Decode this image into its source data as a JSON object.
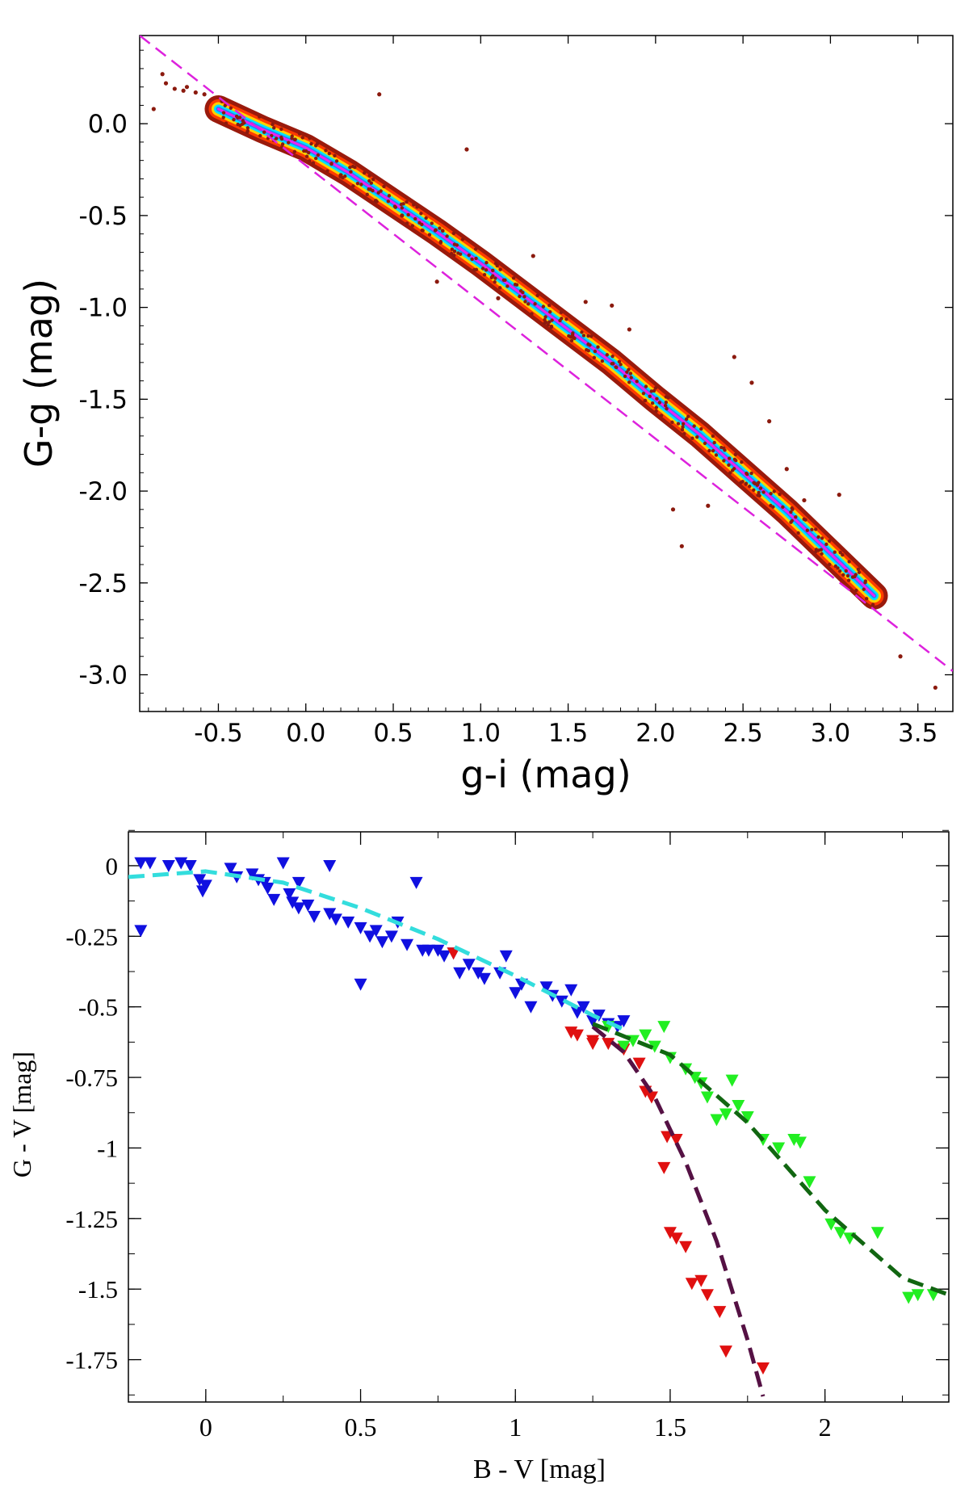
{
  "chart_data": [
    {
      "type": "scatter",
      "title": "",
      "xlabel": "g-i (mag)",
      "ylabel": "G-g (mag)",
      "xlim": [
        -0.95,
        3.7
      ],
      "ylim": [
        -3.2,
        0.48
      ],
      "xticks": [
        -0.5,
        0.0,
        0.5,
        1.0,
        1.5,
        2.0,
        2.5,
        3.0,
        3.5
      ],
      "xtick_labels": [
        "-0.5",
        "0.0",
        "0.5",
        "1.0",
        "1.5",
        "2.0",
        "2.5",
        "3.0",
        "3.5"
      ],
      "yticks": [
        0.0,
        -0.5,
        -1.0,
        -1.5,
        -2.0,
        -2.5,
        -3.0
      ],
      "ytick_labels": [
        "0.0",
        "-0.5",
        "-1.0",
        "-1.5",
        "-2.0",
        "-2.5",
        "-3.0"
      ],
      "colors": {
        "density_low": "#8b1a0e",
        "fit_line": "#dd22dd"
      },
      "density_ridge": {
        "x": [
          -0.5,
          -0.25,
          0.0,
          0.25,
          0.5,
          0.75,
          1.0,
          1.25,
          1.5,
          1.75,
          2.0,
          2.25,
          2.5,
          2.75,
          3.0,
          3.25
        ],
        "y": [
          0.08,
          -0.03,
          -0.13,
          -0.27,
          -0.43,
          -0.59,
          -0.76,
          -0.94,
          -1.12,
          -1.3,
          -1.5,
          -1.69,
          -1.9,
          -2.11,
          -2.34,
          -2.57
        ]
      },
      "outliers": {
        "x": [
          -0.87,
          -0.82,
          -0.8,
          -0.75,
          -0.7,
          -0.68,
          -0.63,
          -0.58,
          0.42,
          0.92,
          0.4,
          0.55,
          1.3,
          1.6,
          1.75,
          1.85,
          2.1,
          2.15,
          2.3,
          2.45,
          2.55,
          2.75,
          2.85,
          3.05,
          3.4,
          3.6,
          0.2,
          0.75,
          1.1,
          2.65
        ],
        "y": [
          0.08,
          0.27,
          0.22,
          0.19,
          0.18,
          0.2,
          0.17,
          0.16,
          0.16,
          -0.14,
          -0.42,
          -0.5,
          -0.72,
          -0.97,
          -0.99,
          -1.12,
          -2.1,
          -2.3,
          -2.08,
          -1.27,
          -1.41,
          -1.88,
          -2.05,
          -2.02,
          -2.9,
          -3.07,
          -0.28,
          -0.86,
          -0.95,
          -1.62
        ]
      },
      "fit_line": {
        "name": "fit",
        "x": [
          -0.95,
          3.7
        ],
        "y": [
          0.48,
          -2.98
        ]
      }
    },
    {
      "type": "scatter",
      "title": "",
      "xlabel": "B - V [mag]",
      "ylabel": "G - V [mag]",
      "xlim": [
        -0.25,
        2.4
      ],
      "ylim": [
        -1.9,
        0.12
      ],
      "xticks": [
        0,
        0.5,
        1,
        1.5,
        2
      ],
      "xtick_labels": [
        "0",
        "0.5",
        "1",
        "1.5",
        "2"
      ],
      "yticks": [
        0,
        -0.25,
        -0.5,
        -0.75,
        -1,
        -1.25,
        -1.5,
        -1.75
      ],
      "ytick_labels": [
        "0",
        "-0.25",
        "-0.5",
        "-0.75",
        "-1",
        "-1.25",
        "-1.5",
        "-1.75"
      ],
      "series": [
        {
          "name": "blue",
          "color": "#1010e0",
          "x": [
            -0.21,
            -0.18,
            -0.12,
            -0.08,
            -0.05,
            -0.02,
            -0.01,
            0.08,
            0.15,
            0.17,
            0.19,
            0.2,
            0.22,
            0.25,
            0.27,
            0.28,
            0.3,
            0.33,
            0.35,
            0.4,
            0.42,
            0.46,
            0.5,
            0.53,
            0.55,
            0.57,
            0.6,
            0.65,
            0.7,
            0.75,
            0.77,
            0.8,
            0.82,
            0.85,
            0.9,
            0.95,
            1.0,
            1.02,
            1.05,
            1.1,
            1.12,
            1.15,
            1.2,
            1.22,
            1.25,
            1.27,
            1.3,
            1.33,
            1.35,
            0.5,
            0.3,
            0.4,
            0.62,
            0.72,
            0.97,
            0.1,
            -0.21,
            0.0,
            0.68,
            0.88,
            1.18
          ],
          "y": [
            0.01,
            0.01,
            0.0,
            0.01,
            0.0,
            -0.05,
            -0.09,
            -0.01,
            -0.03,
            -0.05,
            -0.06,
            -0.08,
            -0.12,
            0.01,
            -0.1,
            -0.13,
            -0.15,
            -0.14,
            -0.18,
            -0.17,
            -0.19,
            -0.2,
            -0.22,
            -0.25,
            -0.23,
            -0.27,
            -0.25,
            -0.28,
            -0.3,
            -0.3,
            -0.32,
            -0.31,
            -0.38,
            -0.35,
            -0.4,
            -0.38,
            -0.45,
            -0.42,
            -0.5,
            -0.43,
            -0.46,
            -0.48,
            -0.52,
            -0.5,
            -0.55,
            -0.53,
            -0.56,
            -0.57,
            -0.55,
            -0.42,
            -0.06,
            0.0,
            -0.2,
            -0.3,
            -0.32,
            -0.04,
            -0.23,
            -0.07,
            -0.06,
            -0.38,
            -0.44
          ]
        },
        {
          "name": "red",
          "color": "#e01010",
          "x": [
            0.8,
            1.18,
            1.2,
            1.25,
            1.3,
            1.35,
            1.42,
            1.44,
            1.49,
            1.52,
            1.48,
            1.5,
            1.52,
            1.55,
            1.57,
            1.6,
            1.62,
            1.66,
            1.68,
            1.8,
            1.25,
            1.4
          ],
          "y": [
            -0.31,
            -0.59,
            -0.6,
            -0.62,
            -0.63,
            -0.65,
            -0.8,
            -0.82,
            -0.96,
            -0.97,
            -1.07,
            -1.3,
            -1.32,
            -1.35,
            -1.48,
            -1.47,
            -1.52,
            -1.58,
            -1.72,
            -1.78,
            -0.63,
            -0.7
          ]
        },
        {
          "name": "green",
          "color": "#22ee22",
          "x": [
            1.3,
            1.35,
            1.38,
            1.42,
            1.45,
            1.5,
            1.55,
            1.58,
            1.62,
            1.65,
            1.68,
            1.72,
            1.75,
            1.8,
            1.85,
            1.9,
            1.92,
            1.95,
            2.02,
            2.05,
            2.08,
            2.17,
            2.27,
            2.3,
            2.35,
            1.48,
            1.6,
            1.7
          ],
          "y": [
            -0.57,
            -0.64,
            -0.62,
            -0.6,
            -0.64,
            -0.68,
            -0.72,
            -0.75,
            -0.82,
            -0.9,
            -0.88,
            -0.85,
            -0.89,
            -0.97,
            -1.0,
            -0.97,
            -0.98,
            -1.12,
            -1.27,
            -1.3,
            -1.32,
            -1.3,
            -1.53,
            -1.52,
            -1.52,
            -0.57,
            -0.77,
            -0.76
          ]
        }
      ],
      "fits": [
        {
          "name": "cyan-fit",
          "color": "#33dddd",
          "x": [
            -0.25,
            0.0,
            0.25,
            0.5,
            0.75,
            1.0,
            1.25,
            1.35
          ],
          "y": [
            -0.04,
            -0.02,
            -0.06,
            -0.15,
            -0.26,
            -0.39,
            -0.53,
            -0.58
          ]
        },
        {
          "name": "purple-fit",
          "color": "#551144",
          "x": [
            1.25,
            1.35,
            1.45,
            1.55,
            1.65,
            1.75,
            1.8
          ],
          "y": [
            -0.57,
            -0.66,
            -0.82,
            -1.05,
            -1.33,
            -1.68,
            -1.88
          ]
        },
        {
          "name": "darkgreen-fit",
          "color": "#116611",
          "x": [
            1.25,
            1.5,
            1.75,
            2.0,
            2.25,
            2.4
          ],
          "y": [
            -0.56,
            -0.67,
            -0.91,
            -1.22,
            -1.46,
            -1.52
          ]
        }
      ]
    }
  ]
}
